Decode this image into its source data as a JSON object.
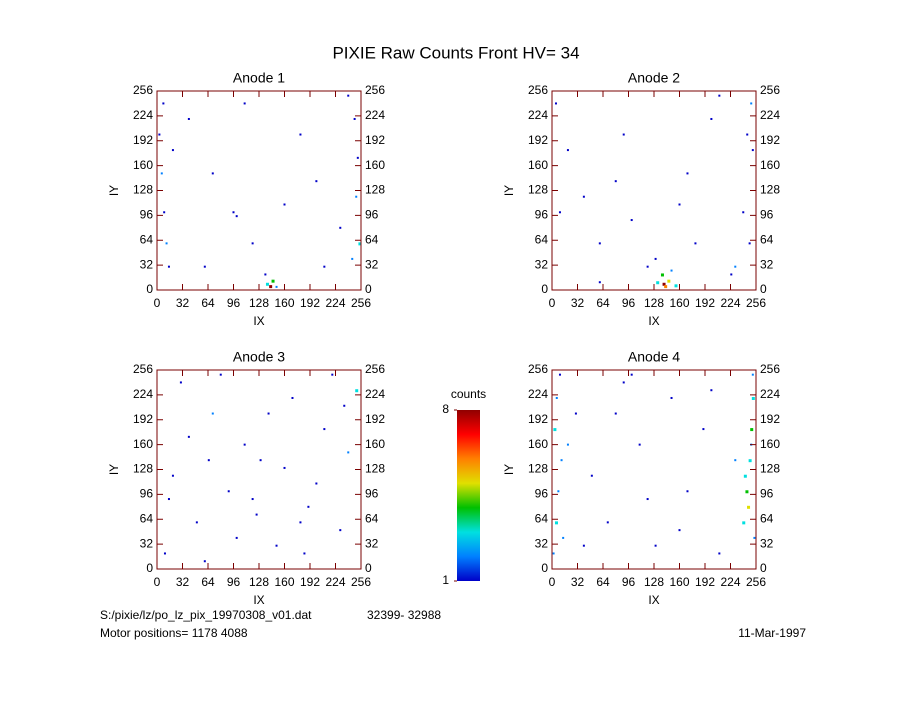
{
  "title": "PIXIE Raw Counts Front HV= 34",
  "footer": {
    "file": "S:/pixie/lz/po_lz_pix_19970308_v01.dat",
    "range": "32399- 32988",
    "motor": "Motor positions= 1178 4088",
    "date": "11-Mar-1997"
  },
  "colorbar": {
    "label": "counts",
    "zlim": [
      1,
      8
    ],
    "ticks": [
      1,
      8
    ],
    "colors": [
      "#0000c8",
      "#0080ff",
      "#00e0e0",
      "#00c000",
      "#e0e000",
      "#ff8000",
      "#ff0000",
      "#900000"
    ]
  },
  "chart_data": [
    {
      "type": "scatter",
      "title": "Anode 1",
      "x_label": "IX",
      "y_label": "IY",
      "xlim": [
        0,
        256
      ],
      "ylim": [
        0,
        256
      ],
      "xticks": [
        0,
        32,
        64,
        96,
        128,
        160,
        192,
        224,
        256
      ],
      "yticks": [
        0,
        32,
        64,
        96,
        128,
        160,
        192,
        224,
        256
      ],
      "x": [
        3,
        6,
        9,
        12,
        15,
        8,
        20,
        40,
        70,
        96,
        100,
        120,
        138,
        142,
        145,
        150,
        136,
        180,
        200,
        230,
        245,
        250,
        252,
        248,
        254,
        240,
        60,
        110,
        160,
        210
      ],
      "y": [
        200,
        150,
        100,
        60,
        30,
        240,
        180,
        220,
        150,
        100,
        95,
        60,
        8,
        5,
        12,
        4,
        20,
        200,
        140,
        80,
        40,
        120,
        170,
        220,
        60,
        250,
        30,
        240,
        110,
        30
      ],
      "values": [
        1,
        2,
        1,
        2,
        1,
        1,
        1,
        1,
        1,
        1,
        1,
        1,
        3,
        8,
        4,
        2,
        1,
        1,
        1,
        1,
        2,
        2,
        1,
        1,
        3,
        1,
        1,
        1,
        1,
        1
      ]
    },
    {
      "type": "scatter",
      "title": "Anode 2",
      "x_label": "IX",
      "y_label": "IY",
      "xlim": [
        0,
        256
      ],
      "ylim": [
        0,
        256
      ],
      "xticks": [
        0,
        32,
        64,
        96,
        128,
        160,
        192,
        224,
        256
      ],
      "yticks": [
        0,
        32,
        64,
        96,
        128,
        160,
        192,
        224,
        256
      ],
      "x": [
        5,
        20,
        40,
        60,
        90,
        120,
        132,
        138,
        140,
        142,
        146,
        150,
        155,
        130,
        170,
        200,
        230,
        245,
        250,
        252,
        240,
        100,
        180,
        60,
        210,
        10,
        225,
        248,
        80,
        160
      ],
      "y": [
        240,
        180,
        120,
        60,
        200,
        30,
        10,
        20,
        8,
        5,
        12,
        25,
        6,
        40,
        150,
        220,
        30,
        200,
        240,
        180,
        100,
        90,
        60,
        10,
        250,
        100,
        20,
        60,
        140,
        110
      ],
      "values": [
        1,
        1,
        1,
        1,
        1,
        1,
        3,
        4,
        8,
        6,
        5,
        2,
        3,
        1,
        1,
        1,
        2,
        1,
        2,
        1,
        1,
        1,
        1,
        1,
        1,
        1,
        1,
        1,
        1,
        1
      ]
    },
    {
      "type": "scatter",
      "title": "Anode 3",
      "x_label": "IX",
      "y_label": "IY",
      "xlim": [
        0,
        256
      ],
      "ylim": [
        0,
        256
      ],
      "xticks": [
        0,
        32,
        64,
        96,
        128,
        160,
        192,
        224,
        256
      ],
      "yticks": [
        0,
        32,
        64,
        96,
        128,
        160,
        192,
        224,
        256
      ],
      "x": [
        10,
        30,
        50,
        70,
        90,
        110,
        130,
        150,
        170,
        190,
        210,
        230,
        250,
        20,
        40,
        60,
        80,
        100,
        120,
        140,
        160,
        180,
        200,
        220,
        240,
        15,
        125,
        235,
        65,
        185
      ],
      "y": [
        20,
        240,
        60,
        200,
        100,
        160,
        140,
        30,
        220,
        80,
        180,
        50,
        230,
        120,
        170,
        10,
        250,
        40,
        90,
        200,
        130,
        60,
        110,
        250,
        150,
        90,
        70,
        210,
        140,
        20
      ],
      "values": [
        1,
        1,
        1,
        2,
        1,
        1,
        1,
        1,
        1,
        1,
        1,
        1,
        3,
        1,
        1,
        1,
        1,
        1,
        1,
        1,
        1,
        1,
        1,
        1,
        2,
        1,
        1,
        1,
        1,
        1
      ]
    },
    {
      "type": "scatter",
      "title": "Anode 4",
      "x_label": "IX",
      "y_label": "IY",
      "xlim": [
        0,
        256
      ],
      "ylim": [
        0,
        256
      ],
      "xticks": [
        0,
        32,
        64,
        96,
        128,
        160,
        192,
        224,
        256
      ],
      "yticks": [
        0,
        32,
        64,
        96,
        128,
        160,
        192,
        224,
        256
      ],
      "x": [
        2,
        5,
        8,
        12,
        3,
        6,
        10,
        14,
        30,
        50,
        70,
        90,
        110,
        130,
        150,
        170,
        190,
        210,
        230,
        240,
        244,
        248,
        250,
        252,
        254,
        246,
        242,
        250,
        252,
        40,
        80,
        120,
        160,
        200,
        100,
        20
      ],
      "y": [
        20,
        60,
        100,
        140,
        180,
        220,
        250,
        40,
        200,
        120,
        60,
        240,
        160,
        30,
        220,
        100,
        180,
        20,
        140,
        60,
        100,
        140,
        180,
        220,
        40,
        80,
        120,
        160,
        250,
        30,
        200,
        90,
        50,
        230,
        250,
        160
      ],
      "values": [
        2,
        3,
        2,
        2,
        3,
        2,
        1,
        2,
        1,
        1,
        1,
        1,
        1,
        1,
        1,
        1,
        1,
        1,
        2,
        3,
        4,
        3,
        4,
        3,
        2,
        5,
        3,
        2,
        2,
        1,
        1,
        1,
        1,
        1,
        1,
        2
      ]
    }
  ]
}
